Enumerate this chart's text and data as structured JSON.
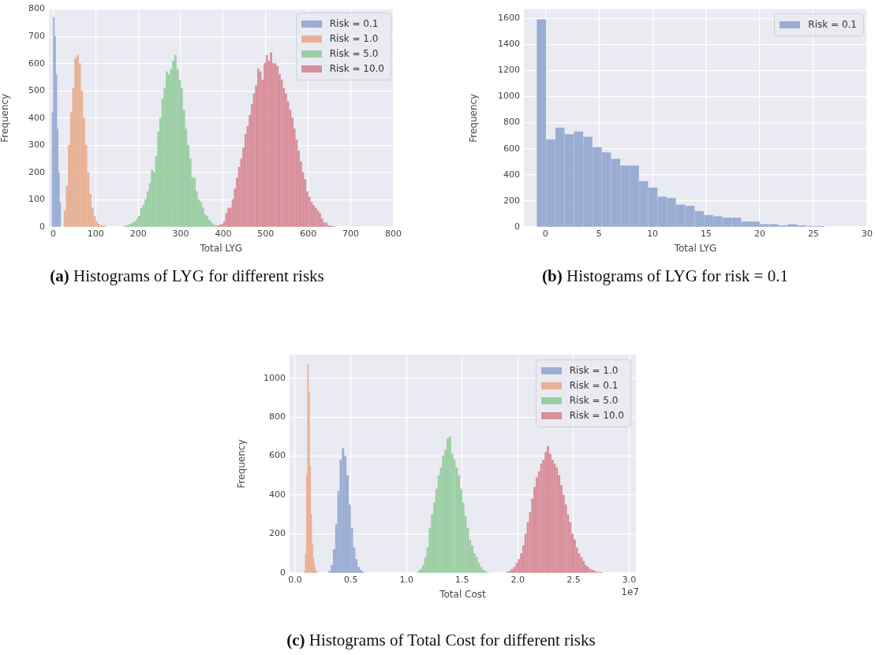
{
  "chart_data": [
    {
      "type": "bar",
      "xlabel": "Total LYG",
      "ylabel": "Frequency",
      "xlim": [
        -10,
        800
      ],
      "ylim": [
        0,
        800
      ],
      "xticks": [
        0,
        100,
        200,
        300,
        400,
        500,
        600,
        700,
        800
      ],
      "yticks": [
        0,
        100,
        200,
        300,
        400,
        500,
        600,
        700,
        800
      ],
      "grid": true,
      "legend": "top right",
      "annotations": [
        "(a) Histograms of LYG for different risks"
      ],
      "series": [
        {
          "name": "Risk = 0.1",
          "color": "#9aaed4",
          "x": [
            -1.5,
            1.5,
            4.5,
            7.5,
            10.5,
            13.5,
            16.5
          ],
          "values": [
            420,
            770,
            700,
            560,
            360,
            200,
            90
          ]
        },
        {
          "name": "Risk = 1.0",
          "color": "#e8b194",
          "x": [
            27.5,
            32.5,
            37.5,
            42.5,
            47.5,
            52.5,
            57.5,
            62.5,
            67.5,
            72.5,
            77.5,
            82.5,
            87.5,
            92.5,
            97.5,
            102.5,
            107.5,
            112.5,
            117.5,
            122.5
          ],
          "values": [
            60,
            150,
            300,
            420,
            510,
            620,
            630,
            600,
            500,
            400,
            300,
            200,
            120,
            70,
            40,
            20,
            10,
            5,
            5,
            3
          ]
        },
        {
          "name": "Risk = 5.0",
          "color": "#9ccea4",
          "x": [
            167.5,
            172.5,
            177.5,
            182.5,
            187.5,
            192.5,
            197.5,
            202.5,
            207.5,
            212.5,
            217.5,
            222.5,
            227.5,
            232.5,
            237.5,
            242.5,
            247.5,
            252.5,
            257.5,
            262.5,
            267.5,
            272.5,
            277.5,
            282.5,
            287.5,
            292.5,
            297.5,
            302.5,
            307.5,
            312.5,
            317.5,
            322.5,
            327.5,
            332.5,
            337.5,
            342.5,
            347.5,
            352.5,
            357.5,
            362.5,
            367.5,
            372.5,
            377.5,
            382.5
          ],
          "values": [
            3,
            5,
            8,
            10,
            15,
            20,
            30,
            40,
            70,
            80,
            100,
            130,
            160,
            210,
            200,
            260,
            350,
            400,
            470,
            510,
            570,
            560,
            580,
            610,
            630,
            580,
            540,
            510,
            430,
            360,
            300,
            250,
            180,
            180,
            130,
            100,
            90,
            70,
            45,
            40,
            25,
            15,
            10,
            5
          ]
        },
        {
          "name": "Risk = 10.0",
          "color": "#d8909a",
          "x": [
            387.5,
            392.5,
            397.5,
            402.5,
            407.5,
            412.5,
            417.5,
            422.5,
            427.5,
            432.5,
            437.5,
            442.5,
            447.5,
            452.5,
            457.5,
            462.5,
            467.5,
            472.5,
            477.5,
            482.5,
            487.5,
            492.5,
            497.5,
            502.5,
            507.5,
            512.5,
            517.5,
            522.5,
            527.5,
            532.5,
            537.5,
            542.5,
            547.5,
            552.5,
            557.5,
            562.5,
            567.5,
            572.5,
            577.5,
            582.5,
            587.5,
            592.5,
            597.5,
            602.5,
            607.5,
            612.5,
            617.5,
            622.5,
            627.5,
            632.5,
            637.5,
            642.5,
            647.5,
            652.5,
            657.5,
            662.5
          ],
          "values": [
            5,
            8,
            10,
            20,
            50,
            70,
            70,
            100,
            140,
            180,
            220,
            250,
            290,
            340,
            370,
            410,
            450,
            490,
            520,
            580,
            570,
            540,
            600,
            630,
            610,
            640,
            600,
            600,
            590,
            560,
            540,
            510,
            490,
            460,
            430,
            400,
            360,
            320,
            280,
            240,
            200,
            175,
            130,
            110,
            90,
            80,
            70,
            60,
            50,
            30,
            15,
            15,
            5,
            5,
            2,
            2
          ]
        }
      ]
    },
    {
      "type": "histogram",
      "xlabel": "Total LYG",
      "ylabel": "Frequency",
      "xlim": [
        -2,
        30
      ],
      "ylim": [
        0,
        1670
      ],
      "xticks": [
        0,
        5,
        10,
        15,
        20,
        25,
        30
      ],
      "yticks": [
        0,
        200,
        400,
        600,
        800,
        1000,
        1200,
        1400,
        1600
      ],
      "grid": true,
      "legend": "top right",
      "annotations": [
        "(b) Histograms of LYG for risk = 0.1"
      ],
      "bins": [
        -0.8,
        0.07,
        0.93,
        1.8,
        2.66,
        3.53,
        4.4,
        5.26,
        6.13,
        6.99,
        7.86,
        8.73,
        9.59,
        10.46,
        11.32,
        12.19,
        13.06,
        13.92,
        14.79,
        15.65,
        16.52,
        17.39,
        18.25,
        19.12,
        19.98,
        20.85,
        21.72,
        22.58,
        23.45,
        24.31,
        25.18,
        26.05
      ],
      "series": [
        {
          "name": "Risk = 0.1",
          "color": "#9aaed4",
          "values": [
            1590,
            670,
            760,
            710,
            730,
            690,
            610,
            570,
            520,
            470,
            470,
            350,
            300,
            230,
            220,
            170,
            160,
            120,
            90,
            80,
            70,
            70,
            40,
            40,
            20,
            20,
            10,
            20,
            10,
            5,
            2
          ]
        }
      ]
    },
    {
      "type": "bar",
      "xlabel": "Total Cost",
      "ylabel": "Frequency",
      "xlim": [
        -0.05,
        3.06
      ],
      "ylim": [
        0,
        1120
      ],
      "xticks": [
        {
          "value": 0,
          "label": "0.0"
        },
        0.5,
        {
          "value": 1,
          "label": "1.0"
        },
        1.5,
        {
          "value": 2,
          "label": "2.0"
        },
        2.5,
        {
          "value": 3,
          "label": "3.0"
        }
      ],
      "yticks": [
        0,
        200,
        400,
        600,
        800,
        1000
      ],
      "grid": true,
      "legend": "top right",
      "annotations": [
        "1e7",
        "(c) Histograms of Total Cost for different risks"
      ],
      "series": [
        {
          "name": "Risk = 1.0",
          "color": "#9aaed4",
          "x": [
            0.31,
            0.33,
            0.35,
            0.37,
            0.39,
            0.41,
            0.43,
            0.45,
            0.47,
            0.49,
            0.51,
            0.53,
            0.55,
            0.57,
            0.59,
            0.61
          ],
          "values": [
            10,
            40,
            120,
            250,
            420,
            580,
            640,
            600,
            500,
            350,
            230,
            130,
            70,
            30,
            15,
            5
          ]
        },
        {
          "name": "Risk = 0.1",
          "color": "#e8b194",
          "x": [
            0.085,
            0.095,
            0.105,
            0.115,
            0.125,
            0.135,
            0.145,
            0.155,
            0.165,
            0.175,
            0.185,
            0.195
          ],
          "values": [
            10,
            100,
            500,
            1070,
            930,
            550,
            300,
            150,
            80,
            40,
            15,
            5
          ]
        },
        {
          "name": "Risk = 5.0",
          "color": "#9ccea4",
          "x": [
            1.11,
            1.13,
            1.15,
            1.17,
            1.19,
            1.21,
            1.23,
            1.25,
            1.27,
            1.29,
            1.31,
            1.33,
            1.35,
            1.37,
            1.39,
            1.41,
            1.43,
            1.45,
            1.47,
            1.49,
            1.51,
            1.53,
            1.55,
            1.57,
            1.59,
            1.61,
            1.63,
            1.65,
            1.67,
            1.69,
            1.71,
            1.73
          ],
          "values": [
            10,
            20,
            40,
            80,
            130,
            230,
            300,
            360,
            430,
            500,
            540,
            600,
            630,
            690,
            700,
            610,
            580,
            540,
            500,
            430,
            360,
            290,
            230,
            170,
            140,
            100,
            80,
            50,
            30,
            15,
            8,
            3
          ]
        },
        {
          "name": "Risk = 10.0",
          "color": "#d8909a",
          "x": [
            1.91,
            1.93,
            1.95,
            1.97,
            1.99,
            2.01,
            2.03,
            2.05,
            2.07,
            2.09,
            2.11,
            2.13,
            2.15,
            2.17,
            2.19,
            2.21,
            2.23,
            2.25,
            2.27,
            2.29,
            2.31,
            2.33,
            2.35,
            2.37,
            2.39,
            2.41,
            2.43,
            2.45,
            2.47,
            2.49,
            2.51,
            2.53,
            2.55,
            2.57,
            2.59,
            2.61,
            2.63,
            2.65,
            2.67,
            2.69,
            2.71,
            2.73,
            2.75
          ],
          "values": [
            5,
            10,
            20,
            30,
            50,
            70,
            100,
            140,
            200,
            260,
            310,
            380,
            440,
            490,
            520,
            560,
            580,
            620,
            650,
            610,
            580,
            560,
            540,
            500,
            450,
            400,
            350,
            300,
            260,
            200,
            170,
            130,
            100,
            80,
            60,
            40,
            30,
            20,
            15,
            10,
            5,
            3,
            2
          ]
        }
      ]
    }
  ]
}
